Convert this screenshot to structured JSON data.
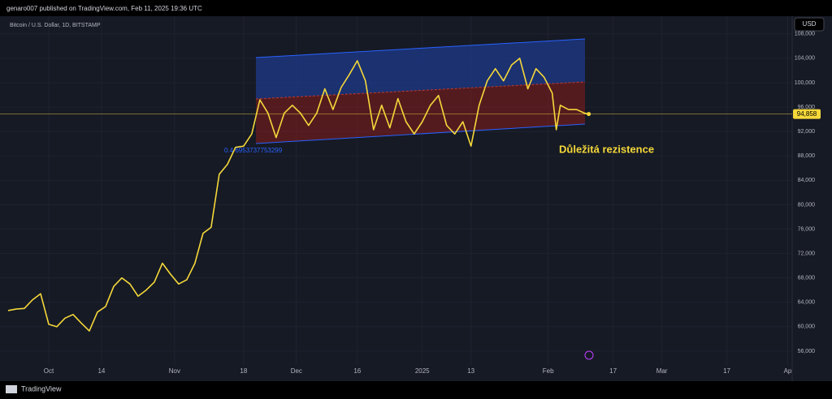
{
  "header": {
    "published": "genaro007 published on TradingView.com, Feb 11, 2025 19:36 UTC",
    "brand": "TradingView",
    "currency": "USD"
  },
  "chart_data": {
    "type": "line",
    "title": "Bitcoin / U.S. Dollar, 1D, BITSTAMP",
    "annotations": [
      "Důležitá rezistence",
      "0.4 6953737753299"
    ],
    "x": [
      -10,
      -8,
      -6,
      -4,
      -2,
      0,
      2,
      4,
      6,
      8,
      10,
      12,
      14,
      16,
      18,
      20,
      22,
      24,
      26,
      28,
      30,
      32,
      34,
      36,
      38,
      40,
      42,
      44,
      46,
      48,
      50,
      52,
      54,
      56,
      58,
      60,
      62,
      64,
      66,
      68,
      70,
      72,
      74,
      76,
      78,
      80,
      82,
      84,
      86,
      88,
      90,
      92,
      94,
      96,
      98,
      100,
      102,
      104,
      106,
      108,
      110,
      112,
      114,
      116,
      118,
      120,
      122,
      124,
      125,
      126,
      128,
      130,
      132,
      133
    ],
    "series": [
      {
        "name": "BTCUSD",
        "color": "#f5d83a",
        "values": [
          62650,
          62900,
          63000,
          64400,
          65400,
          60400,
          60000,
          61400,
          62000,
          60600,
          59300,
          62400,
          63300,
          66600,
          68000,
          67000,
          65000,
          66000,
          67300,
          70400,
          68600,
          67000,
          67700,
          70400,
          75300,
          76300,
          85000,
          86600,
          89400,
          89600,
          91600,
          97200,
          95000,
          91000,
          95000,
          96300,
          95000,
          93000,
          95000,
          99000,
          95600,
          99200,
          101300,
          103600,
          100300,
          92300,
          96300,
          92600,
          97400,
          93600,
          91600,
          93600,
          96300,
          97900,
          93000,
          91600,
          93600,
          89600,
          96300,
          100300,
          102300,
          100300,
          102900,
          104000,
          99000,
          102300,
          100900,
          98300,
          92300,
          96300,
          95600,
          95600,
          95000,
          94858
        ]
      }
    ],
    "last_value_label": "94,858",
    "xlim": [
      -11,
      182.5
    ],
    "xticks": [
      {
        "value": 0,
        "label": "Oct"
      },
      {
        "value": 13,
        "label": "14"
      },
      {
        "value": 31,
        "label": "Nov"
      },
      {
        "value": 48,
        "label": "18"
      },
      {
        "value": 61,
        "label": "Dec"
      },
      {
        "value": 76,
        "label": "16"
      },
      {
        "value": 92,
        "label": "2025"
      },
      {
        "value": 104,
        "label": "13"
      },
      {
        "value": 123,
        "label": "Feb"
      },
      {
        "value": 139,
        "label": "17"
      },
      {
        "value": 151,
        "label": "Mar"
      },
      {
        "value": 167,
        "label": "17"
      },
      {
        "value": 182,
        "label": "Ap"
      }
    ],
    "ylim": [
      53730,
      110900
    ],
    "yticks": [
      {
        "value": 56000,
        "label": "56,000"
      },
      {
        "value": 60000,
        "label": "60,000"
      },
      {
        "value": 64000,
        "label": "64,000"
      },
      {
        "value": 68000,
        "label": "68,000"
      },
      {
        "value": 72000,
        "label": "72,000"
      },
      {
        "value": 76000,
        "label": "76,000"
      },
      {
        "value": 80000,
        "label": "80,000"
      },
      {
        "value": 84000,
        "label": "84,000"
      },
      {
        "value": 88000,
        "label": "88,000"
      },
      {
        "value": 92000,
        "label": "92,000"
      },
      {
        "value": 96000,
        "label": "96,000"
      },
      {
        "value": 100000,
        "label": "100,000"
      },
      {
        "value": 104000,
        "label": "104,000"
      },
      {
        "value": 108000,
        "label": "108,000"
      }
    ],
    "grid": true
  }
}
